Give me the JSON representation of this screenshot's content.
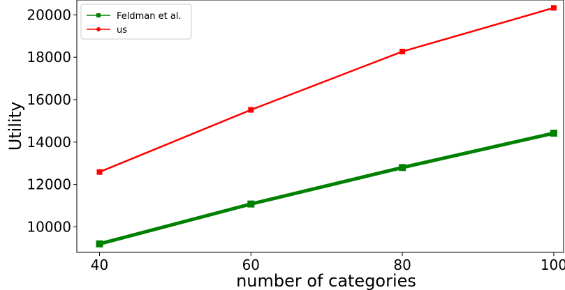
{
  "chart_data": {
    "type": "line",
    "title": "",
    "xlabel": "number of categories",
    "ylabel": "Utility",
    "x": [
      40,
      60,
      80,
      100
    ],
    "xticks": [
      "40",
      "60",
      "80",
      "100"
    ],
    "yticks": [
      "10000",
      "12000",
      "14000",
      "16000",
      "18000",
      "20000"
    ],
    "ytick_values": [
      10000,
      12000,
      14000,
      16000,
      18000,
      20000
    ],
    "xlim": [
      37,
      101.3
    ],
    "ylim": [
      8800,
      20700
    ],
    "grid": false,
    "legend_position": "top-left",
    "series": [
      {
        "name": "Feldman et al.",
        "values": [
          9200,
          11080,
          12800,
          14420
        ],
        "color": "#008000",
        "marker": "square",
        "line_style": "thick"
      },
      {
        "name": "us",
        "values": [
          12590,
          15520,
          18270,
          20330
        ],
        "color": "#ff0000",
        "marker": "square",
        "line_style": "normal"
      }
    ]
  }
}
